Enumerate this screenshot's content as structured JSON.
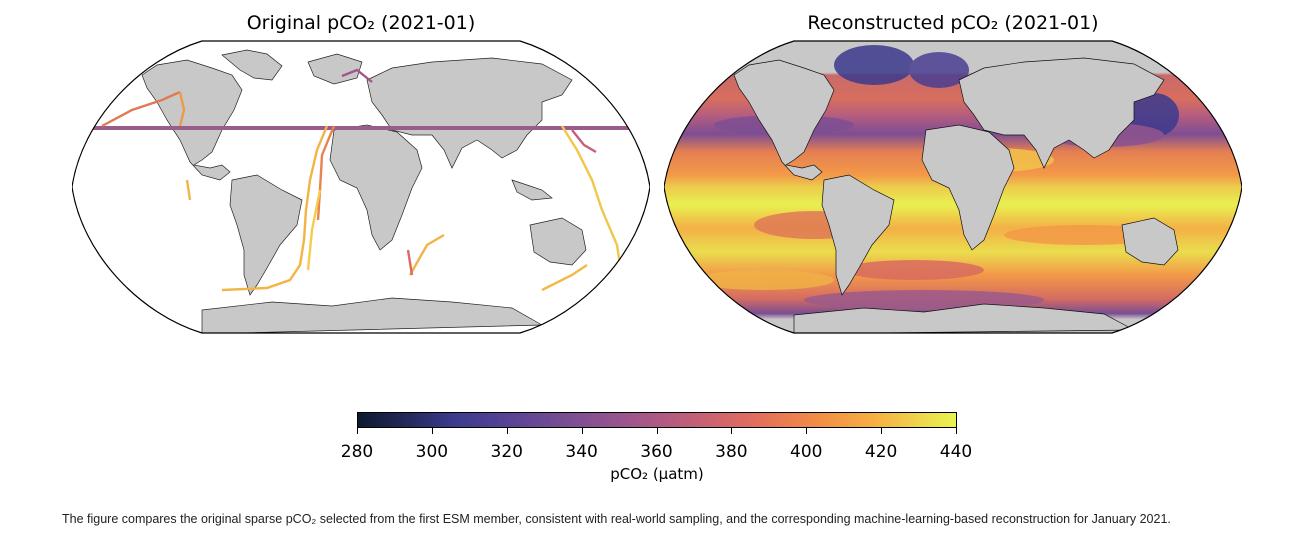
{
  "maps": {
    "left": {
      "title": "Original pCO₂ (2021-01)"
    },
    "right": {
      "title": "Reconstructed pCO₂ (2021-01)"
    }
  },
  "colorbar": {
    "label": "pCO₂ (µatm)",
    "ticks": [
      "280",
      "300",
      "320",
      "340",
      "360",
      "380",
      "400",
      "420",
      "440"
    ],
    "min": 280,
    "max": 440,
    "colormap": [
      "#0d1a2e",
      "#3b3a8e",
      "#a0568c",
      "#e06d5e",
      "#f6ae42",
      "#e8f450"
    ]
  },
  "colors": {
    "land": "#c8c8c8",
    "ocean_empty": "#ffffff",
    "track_band": "#9c5b8a"
  },
  "caption": "The figure compares the original sparse pCO₂ selected from the first ESM member, consistent with real-world sampling, and the corresponding machine-learning-based reconstruction for January 2021."
}
